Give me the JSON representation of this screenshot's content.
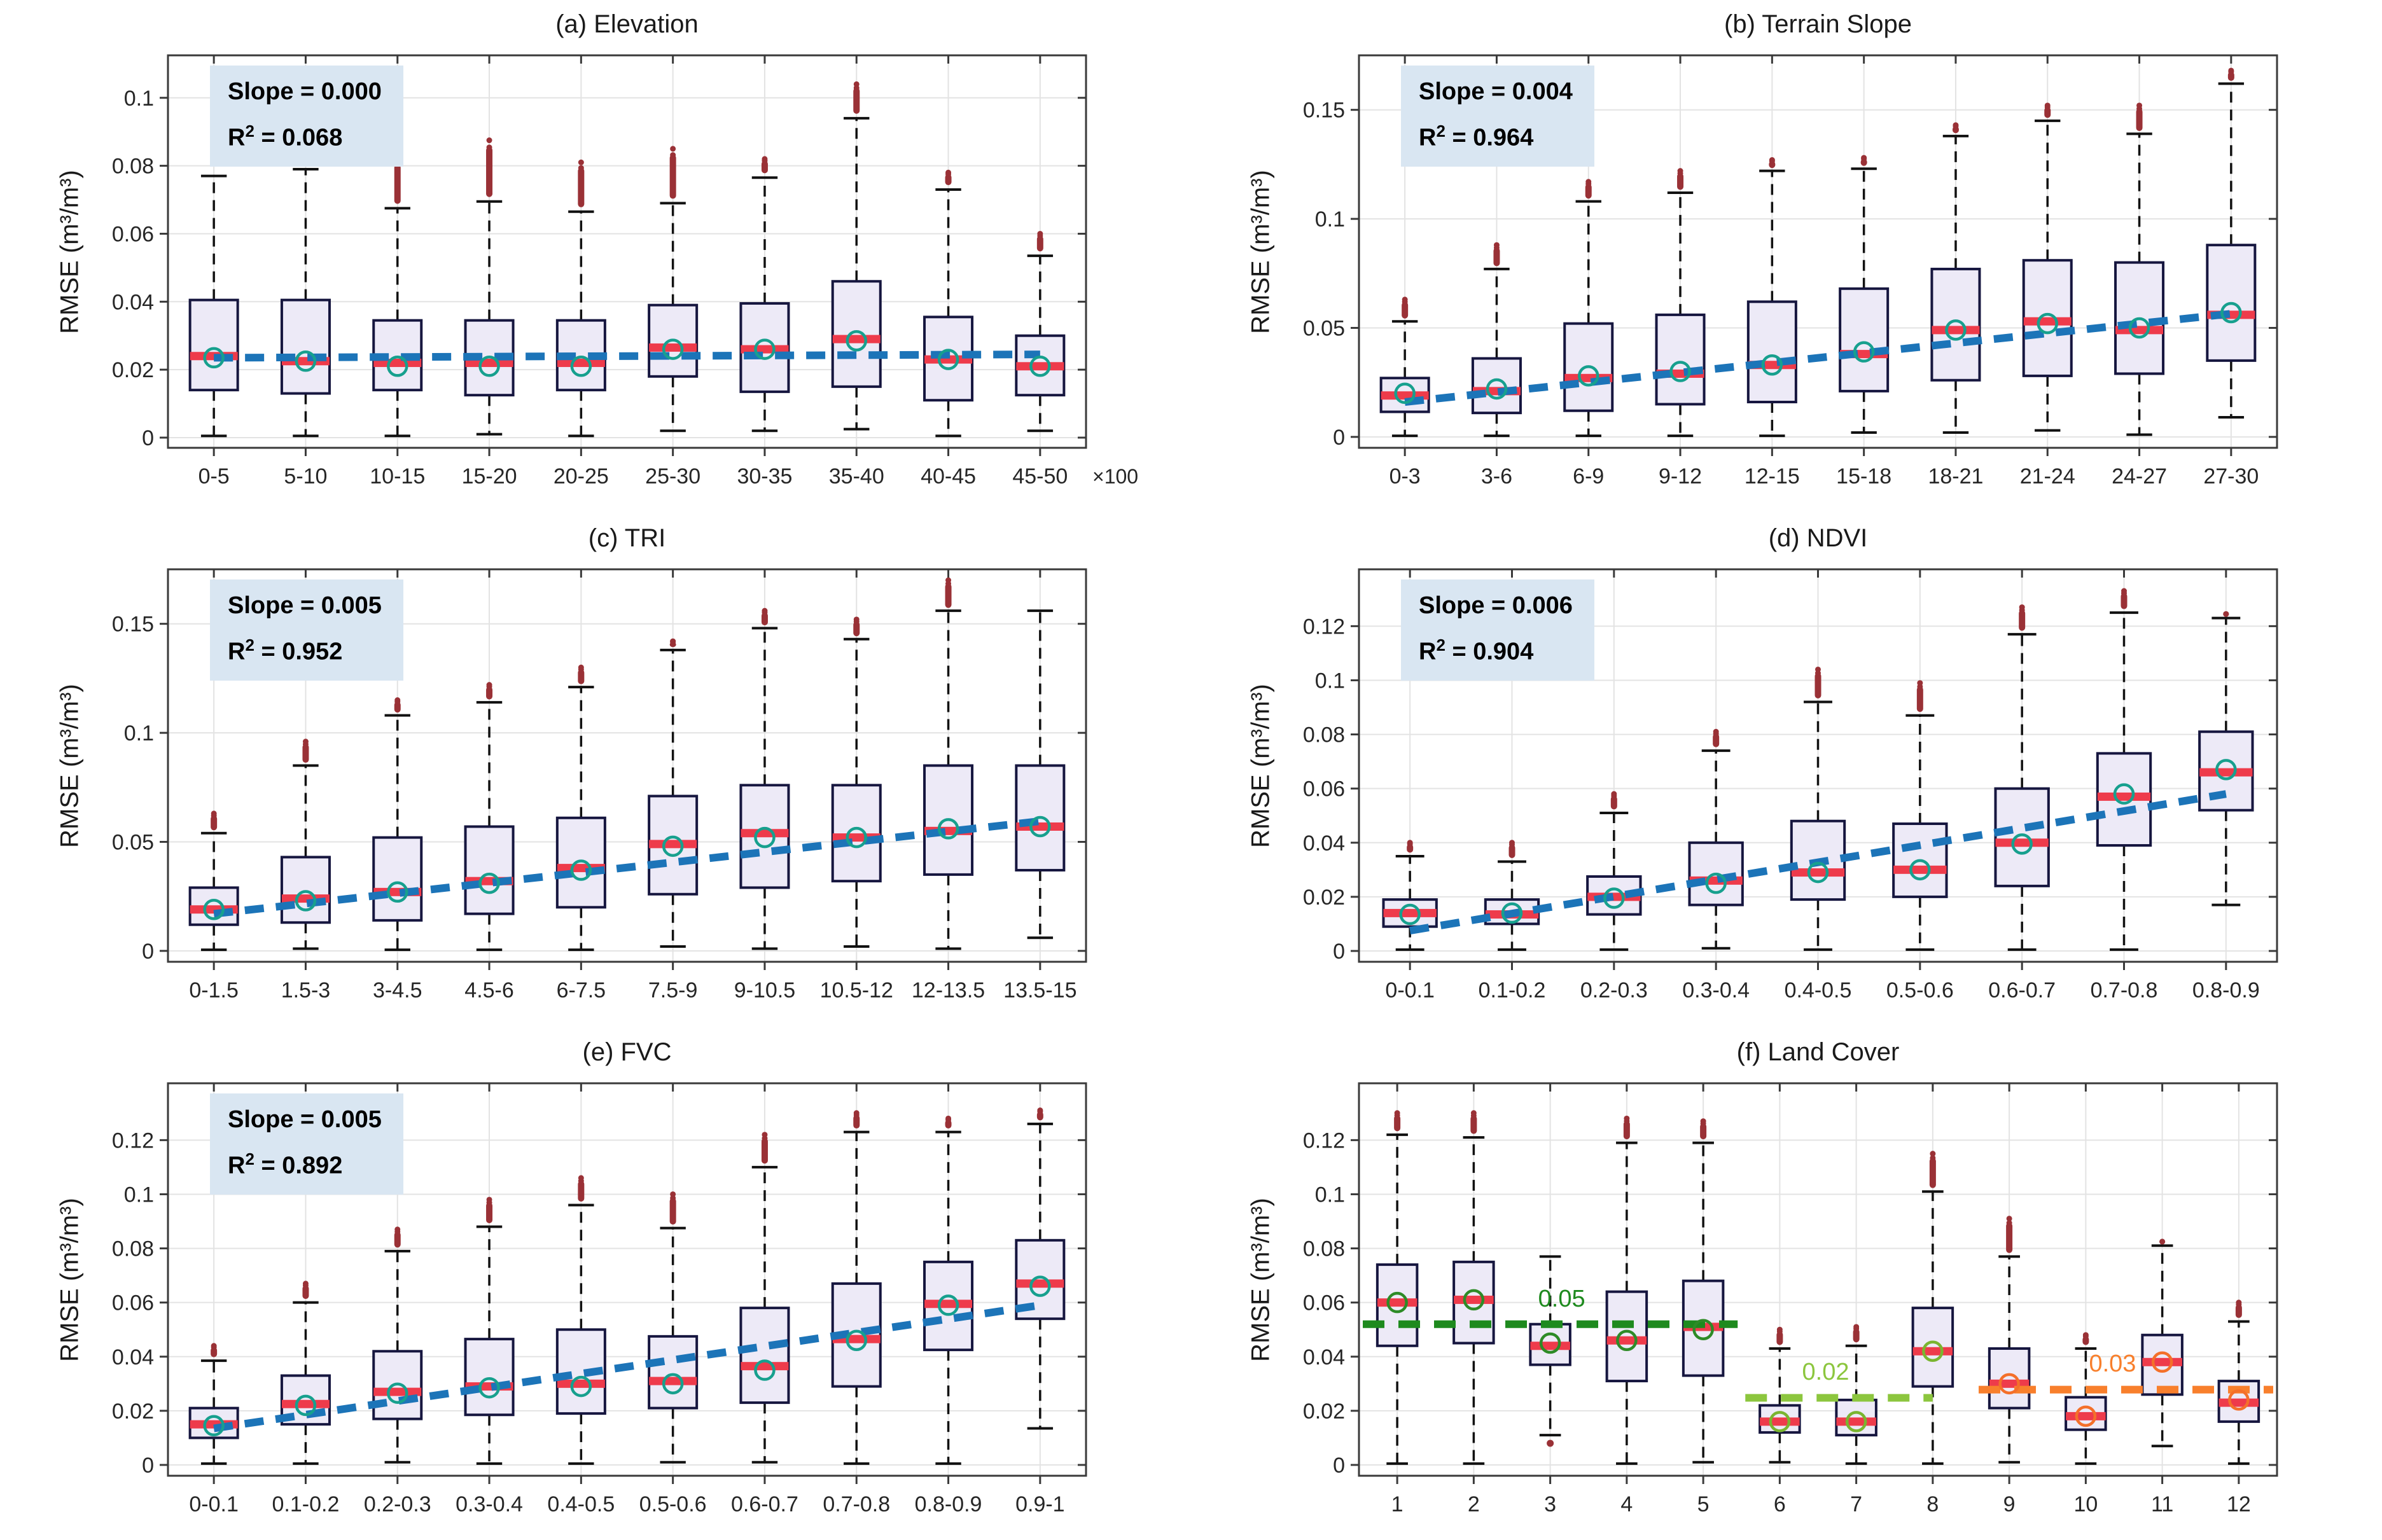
{
  "figure": {
    "ylabel": "RMSE (m³/m³)"
  },
  "colors": {
    "box_fill": "#EDEAF7",
    "box_edge": "#16163F",
    "median": "#EE3B4B",
    "mean_circle": "#17A08E",
    "whisker": "#111111",
    "outlier": "#9A3136",
    "trend": "#1C74B8",
    "grid": "#E3E3E3",
    "frame": "#3A3A3A",
    "tick_text": "#262626",
    "annotation_bg": "#D9E6F2"
  },
  "chart_data": [
    {
      "type": "box",
      "title": "(a) Elevation",
      "ylabel": "RMSE (m³/m³)",
      "x_suffix": "×100",
      "annotation": {
        "slope": "Slope = 0.000",
        "r2_base": "R",
        "r2_sup": "2",
        "r2_tail": " = 0.068"
      },
      "categories": [
        "0-5",
        "5-10",
        "10-15",
        "15-20",
        "20-25",
        "25-30",
        "30-35",
        "35-40",
        "40-45",
        "45-50"
      ],
      "ylim": [
        -0.003,
        0.1125
      ],
      "yticks": [
        0,
        0.02,
        0.04,
        0.06,
        0.08,
        0.1
      ],
      "ytick_labels": [
        "0",
        "0.02",
        "0.04",
        "0.06",
        "0.08",
        "0.1"
      ],
      "boxes": {
        "q1": [
          0.014,
          0.013,
          0.014,
          0.0125,
          0.014,
          0.018,
          0.0135,
          0.015,
          0.011,
          0.0125
        ],
        "median": [
          0.024,
          0.0225,
          0.022,
          0.022,
          0.022,
          0.0265,
          0.026,
          0.029,
          0.023,
          0.021
        ],
        "q3": [
          0.0405,
          0.0405,
          0.0345,
          0.0345,
          0.0345,
          0.039,
          0.0395,
          0.046,
          0.0355,
          0.03
        ],
        "whisker_low": [
          0.0005,
          0.0005,
          0.0005,
          0.001,
          0.0005,
          0.002,
          0.002,
          0.0025,
          0.0005,
          0.002
        ],
        "whisker_high": [
          0.077,
          0.079,
          0.0675,
          0.0695,
          0.0665,
          0.069,
          0.0765,
          0.094,
          0.073,
          0.0535
        ],
        "mean": [
          0.0235,
          0.0225,
          0.021,
          0.021,
          0.021,
          0.026,
          0.026,
          0.0285,
          0.023,
          0.021
        ],
        "outlier_high": [
          null,
          null,
          0.082,
          0.0875,
          0.081,
          0.085,
          0.082,
          0.104,
          0.078,
          0.06
        ],
        "outlier_low": [
          null,
          null,
          null,
          null,
          null,
          null,
          null,
          null,
          null,
          null
        ]
      },
      "trend": {
        "y_first": 0.0235,
        "y_last": 0.0245
      }
    },
    {
      "type": "box",
      "title": "(b) Terrain Slope",
      "ylabel": "RMSE (m³/m³)",
      "annotation": {
        "slope": "Slope = 0.004",
        "r2_base": "R",
        "r2_sup": "2",
        "r2_tail": " = 0.964"
      },
      "categories": [
        "0-3",
        "3-6",
        "6-9",
        "9-12",
        "12-15",
        "15-18",
        "18-21",
        "21-24",
        "24-27",
        "27-30"
      ],
      "ylim": [
        -0.005,
        0.175
      ],
      "yticks": [
        0,
        0.05,
        0.1,
        0.15
      ],
      "ytick_labels": [
        "0",
        "0.05",
        "0.1",
        "0.15"
      ],
      "boxes": {
        "q1": [
          0.0115,
          0.011,
          0.012,
          0.015,
          0.016,
          0.021,
          0.026,
          0.028,
          0.029,
          0.035
        ],
        "median": [
          0.019,
          0.021,
          0.027,
          0.029,
          0.033,
          0.038,
          0.049,
          0.053,
          0.049,
          0.056
        ],
        "q3": [
          0.027,
          0.036,
          0.052,
          0.056,
          0.062,
          0.068,
          0.077,
          0.081,
          0.08,
          0.088
        ],
        "whisker_low": [
          0.0005,
          0.0005,
          0.0005,
          0.0005,
          0.0005,
          0.002,
          0.002,
          0.003,
          0.001,
          0.009
        ],
        "whisker_high": [
          0.053,
          0.077,
          0.108,
          0.112,
          0.122,
          0.123,
          0.138,
          0.145,
          0.139,
          0.162
        ],
        "mean": [
          0.02,
          0.022,
          0.028,
          0.03,
          0.033,
          0.039,
          0.049,
          0.052,
          0.05,
          0.057
        ],
        "outlier_high": [
          0.063,
          0.088,
          0.117,
          0.122,
          0.127,
          0.128,
          0.143,
          0.152,
          0.152,
          0.168
        ],
        "outlier_low": [
          null,
          null,
          null,
          null,
          null,
          null,
          null,
          null,
          null,
          null
        ]
      },
      "trend": {
        "y_first": 0.016,
        "y_last": 0.0565
      }
    },
    {
      "type": "box",
      "title": "(c) TRI",
      "ylabel": "RMSE (m³/m³)",
      "annotation": {
        "slope": "Slope = 0.005",
        "r2_base": "R",
        "r2_sup": "2",
        "r2_tail": " = 0.952"
      },
      "categories": [
        "0-1.5",
        "1.5-3",
        "3-4.5",
        "4.5-6",
        "6-7.5",
        "7.5-9",
        "9-10.5",
        "10.5-12",
        "12-13.5",
        "13.5-15"
      ],
      "ylim": [
        -0.005,
        0.175
      ],
      "yticks": [
        0,
        0.05,
        0.1,
        0.15
      ],
      "ytick_labels": [
        "0",
        "0.05",
        "0.1",
        "0.15"
      ],
      "boxes": {
        "q1": [
          0.012,
          0.013,
          0.014,
          0.017,
          0.02,
          0.026,
          0.029,
          0.032,
          0.035,
          0.037
        ],
        "median": [
          0.019,
          0.024,
          0.027,
          0.032,
          0.038,
          0.049,
          0.054,
          0.052,
          0.055,
          0.057
        ],
        "q3": [
          0.029,
          0.043,
          0.052,
          0.057,
          0.061,
          0.071,
          0.076,
          0.076,
          0.085,
          0.085
        ],
        "whisker_low": [
          0.0005,
          0.001,
          0.0005,
          0.0005,
          0.0005,
          0.002,
          0.001,
          0.002,
          0.001,
          0.006
        ],
        "whisker_high": [
          0.054,
          0.085,
          0.108,
          0.114,
          0.121,
          0.138,
          0.148,
          0.143,
          0.156,
          0.156
        ],
        "mean": [
          0.019,
          0.023,
          0.027,
          0.031,
          0.037,
          0.048,
          0.052,
          0.052,
          0.056,
          0.057
        ],
        "outlier_high": [
          0.063,
          0.096,
          0.115,
          0.122,
          0.13,
          0.142,
          0.156,
          0.152,
          0.17,
          null
        ],
        "outlier_low": [
          null,
          null,
          null,
          null,
          null,
          null,
          null,
          null,
          null,
          null
        ]
      },
      "trend": {
        "y_first": 0.017,
        "y_last": 0.0595
      }
    },
    {
      "type": "box",
      "title": "(d) NDVI",
      "ylabel": "RMSE (m³/m³)",
      "annotation": {
        "slope": "Slope = 0.006",
        "r2_base": "R",
        "r2_sup": "2",
        "r2_tail": " = 0.904"
      },
      "categories": [
        "0-0.1",
        "0.1-0.2",
        "0.2-0.3",
        "0.3-0.4",
        "0.4-0.5",
        "0.5-0.6",
        "0.6-0.7",
        "0.7-0.8",
        "0.8-0.9"
      ],
      "ylim": [
        -0.004,
        0.141
      ],
      "yticks": [
        0,
        0.02,
        0.04,
        0.06,
        0.08,
        0.1,
        0.12
      ],
      "ytick_labels": [
        "0",
        "0.02",
        "0.04",
        "0.06",
        "0.08",
        "0.1",
        "0.12"
      ],
      "boxes": {
        "q1": [
          0.009,
          0.01,
          0.0135,
          0.017,
          0.019,
          0.02,
          0.024,
          0.039,
          0.052
        ],
        "median": [
          0.014,
          0.0135,
          0.02,
          0.026,
          0.029,
          0.03,
          0.04,
          0.057,
          0.066
        ],
        "q3": [
          0.019,
          0.019,
          0.0275,
          0.04,
          0.048,
          0.047,
          0.06,
          0.073,
          0.081
        ],
        "whisker_low": [
          0.0005,
          0.0005,
          0.0005,
          0.001,
          0.0005,
          0.0005,
          0.0005,
          0.0005,
          0.017
        ],
        "whisker_high": [
          0.035,
          0.033,
          0.051,
          0.074,
          0.092,
          0.087,
          0.117,
          0.125,
          0.123
        ],
        "mean": [
          0.0135,
          0.014,
          0.0195,
          0.025,
          0.029,
          0.03,
          0.0395,
          0.058,
          0.067
        ],
        "outlier_high": [
          0.04,
          0.04,
          0.058,
          0.081,
          0.104,
          0.099,
          0.127,
          0.133,
          0.1245
        ],
        "outlier_low": [
          null,
          null,
          null,
          null,
          null,
          null,
          null,
          null,
          null
        ]
      },
      "trend": {
        "y_first": 0.0075,
        "y_last": 0.058
      }
    },
    {
      "type": "box",
      "title": "(e) FVC",
      "ylabel": "RMSE (m³/m³)",
      "annotation": {
        "slope": "Slope = 0.005",
        "r2_base": "R",
        "r2_sup": "2",
        "r2_tail": " = 0.892"
      },
      "categories": [
        "0-0.1",
        "0.1-0.2",
        "0.2-0.3",
        "0.3-0.4",
        "0.4-0.5",
        "0.5-0.6",
        "0.6-0.7",
        "0.7-0.8",
        "0.8-0.9",
        "0.9-1"
      ],
      "ylim": [
        -0.004,
        0.141
      ],
      "yticks": [
        0,
        0.02,
        0.04,
        0.06,
        0.08,
        0.1,
        0.12
      ],
      "ytick_labels": [
        "0",
        "0.02",
        "0.04",
        "0.06",
        "0.08",
        "0.1",
        "0.12"
      ],
      "boxes": {
        "q1": [
          0.01,
          0.015,
          0.017,
          0.0185,
          0.019,
          0.021,
          0.023,
          0.029,
          0.0425,
          0.054
        ],
        "median": [
          0.015,
          0.0225,
          0.027,
          0.029,
          0.03,
          0.031,
          0.0365,
          0.0465,
          0.0595,
          0.067
        ],
        "q3": [
          0.021,
          0.033,
          0.042,
          0.0465,
          0.05,
          0.0475,
          0.058,
          0.067,
          0.075,
          0.083
        ],
        "whisker_low": [
          0.0005,
          0.0005,
          0.001,
          0.0005,
          0.0005,
          0.001,
          0.001,
          0.0005,
          0.0005,
          0.0135
        ],
        "whisker_high": [
          0.0385,
          0.06,
          0.079,
          0.088,
          0.096,
          0.0875,
          0.11,
          0.123,
          0.123,
          0.126
        ],
        "mean": [
          0.0145,
          0.022,
          0.0265,
          0.0285,
          0.029,
          0.03,
          0.035,
          0.046,
          0.059,
          0.066
        ],
        "outlier_high": [
          0.044,
          0.067,
          0.087,
          0.098,
          0.106,
          0.1,
          0.122,
          0.13,
          0.128,
          0.131
        ],
        "outlier_low": [
          null,
          null,
          null,
          null,
          null,
          null,
          null,
          null,
          null,
          null
        ]
      },
      "trend": {
        "y_first": 0.0135,
        "y_last": 0.059
      }
    },
    {
      "type": "box",
      "title": "(f) Land Cover",
      "ylabel": "RMSE (m³/m³)",
      "categories": [
        "1",
        "2",
        "3",
        "4",
        "5",
        "6",
        "7",
        "8",
        "9",
        "10",
        "11",
        "12"
      ],
      "ylim": [
        -0.004,
        0.141
      ],
      "yticks": [
        0,
        0.02,
        0.04,
        0.06,
        0.08,
        0.1,
        0.12
      ],
      "ytick_labels": [
        "0",
        "0.02",
        "0.04",
        "0.06",
        "0.08",
        "0.1",
        "0.12"
      ],
      "boxes": {
        "q1": [
          0.044,
          0.045,
          0.037,
          0.031,
          0.033,
          0.012,
          0.011,
          0.029,
          0.021,
          0.013,
          0.026,
          0.016
        ],
        "median": [
          0.06,
          0.061,
          0.044,
          0.046,
          0.051,
          0.016,
          0.016,
          0.042,
          0.03,
          0.018,
          0.038,
          0.023
        ],
        "q3": [
          0.074,
          0.075,
          0.052,
          0.064,
          0.068,
          0.022,
          0.024,
          0.058,
          0.043,
          0.025,
          0.048,
          0.031
        ],
        "whisker_low": [
          0.0005,
          0.0005,
          0.011,
          0.0005,
          0.001,
          0.001,
          0.0005,
          0.0005,
          0.001,
          0.0005,
          0.007,
          0.0005
        ],
        "whisker_high": [
          0.122,
          0.121,
          0.077,
          0.119,
          0.119,
          0.043,
          0.044,
          0.101,
          0.077,
          0.043,
          0.081,
          0.053
        ],
        "mean": [
          0.06,
          0.061,
          0.045,
          0.046,
          0.05,
          0.016,
          0.016,
          0.042,
          0.03,
          0.018,
          0.038,
          0.024
        ],
        "outlier_high": [
          0.13,
          0.13,
          null,
          0.128,
          0.127,
          0.05,
          0.051,
          0.115,
          0.091,
          0.048,
          0.0825,
          0.06
        ],
        "outlier_low": [
          null,
          null,
          0.008,
          null,
          null,
          null,
          null,
          null,
          null,
          null,
          null,
          null
        ]
      },
      "mean_colors": [
        "#2E8B27",
        "#2E8B27",
        "#2E8B27",
        "#2E8B27",
        "#2E8B27",
        "#7AB530",
        "#7AB530",
        "#7AB530",
        "#F4702A",
        "#F4702A",
        "#F4702A",
        "#F4702A"
      ],
      "ref_lines": [
        {
          "label": "0.05",
          "y": 0.052,
          "x_start": 0.55,
          "x_end": 5.45,
          "color": "#1E8A1E",
          "label_x": 3.15,
          "label_y": 0.0585
        },
        {
          "label": "0.02",
          "y": 0.0248,
          "x_start": 5.55,
          "x_end": 8.0,
          "color": "#8CC63E",
          "label_x": 6.6,
          "label_y": 0.0315
        },
        {
          "label": "0.03",
          "y": 0.0278,
          "x_start": 8.6,
          "x_end": 12.45,
          "color": "#F87F2C",
          "label_x": 10.35,
          "label_y": 0.0345
        }
      ]
    }
  ]
}
